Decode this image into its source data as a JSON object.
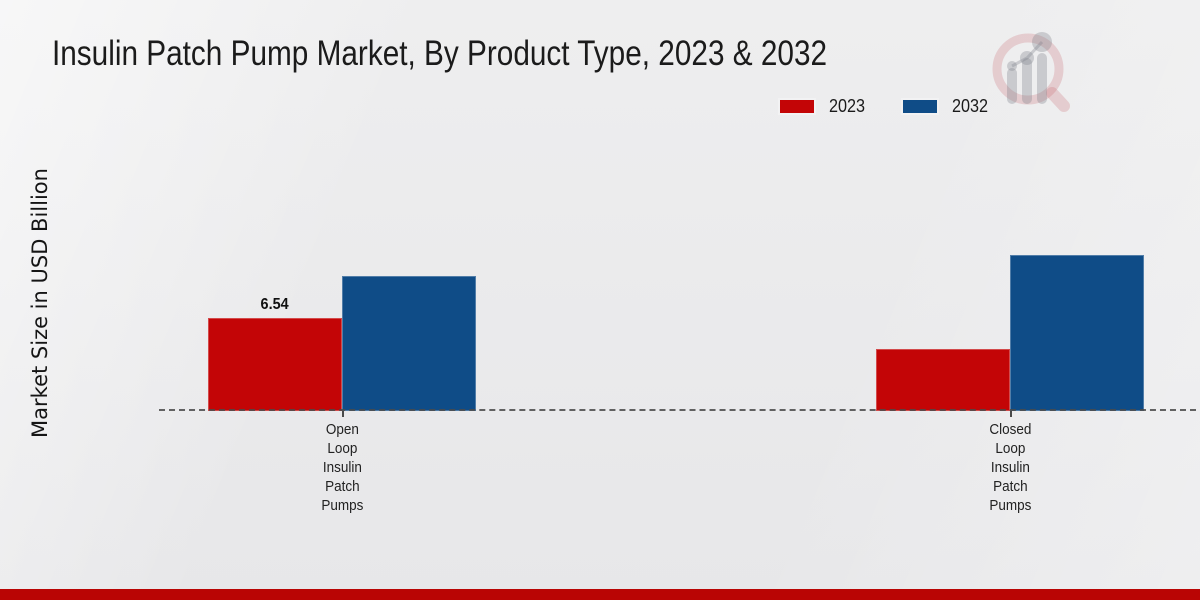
{
  "chart_data": {
    "type": "bar",
    "title": "Insulin Patch Pump Market, By Product Type, 2023 & 2032",
    "ylabel": "Market Size in USD Billion",
    "xlabel": "",
    "categories": [
      "Open Loop Insulin Patch Pumps",
      "Closed Loop Insulin Patch Pumps"
    ],
    "series": [
      {
        "name": "2023",
        "color": "#c30506",
        "values": [
          6.54,
          4.36
        ]
      },
      {
        "name": "2032",
        "color": "#0f4c87",
        "values": [
          9.5,
          10.97
        ]
      }
    ],
    "value_labels": [
      {
        "series_index": 0,
        "category_index": 0,
        "text": "6.54"
      }
    ],
    "ylim": [
      0,
      12.5
    ],
    "grid": false,
    "legend_position": "top-right",
    "baseline_style": "dashed"
  },
  "watermark": {
    "icon": "magnifier-bar-chart-logo"
  },
  "footer": {
    "bar_color": "#b90504"
  }
}
